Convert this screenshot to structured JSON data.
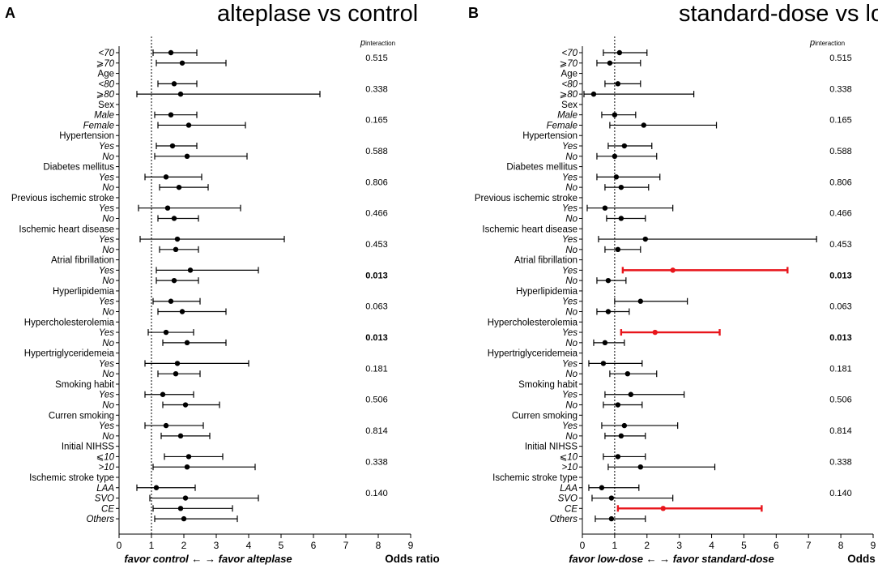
{
  "chart_data": [
    {
      "type": "forest",
      "panel": "A",
      "title": "alteplase vs control",
      "xlabel": "Odds ratio",
      "favor_text": "favor control ← → favor alteplase",
      "pinteraction_label": "p",
      "pinteraction_sub": "interaction",
      "xlim": [
        0,
        9
      ],
      "xticks": [
        0,
        1,
        2,
        3,
        4,
        5,
        6,
        7,
        8,
        9
      ],
      "reference_line": 1,
      "rows": [
        {
          "label": "<70",
          "sub": true,
          "or": 1.6,
          "lo": 1.05,
          "hi": 2.4,
          "p": "0.515",
          "highlight": false
        },
        {
          "label": "⩾70",
          "sub": true,
          "or": 1.95,
          "lo": 1.15,
          "hi": 3.3,
          "highlight": false
        },
        {
          "label": "Age",
          "sub": false
        },
        {
          "label": "<80",
          "sub": true,
          "or": 1.7,
          "lo": 1.2,
          "hi": 2.4,
          "p": "0.338",
          "highlight": false
        },
        {
          "label": "⩾80",
          "sub": true,
          "or": 1.9,
          "lo": 0.55,
          "hi": 6.2,
          "highlight": false
        },
        {
          "label": "Sex",
          "sub": false
        },
        {
          "label": "Male",
          "sub": true,
          "or": 1.6,
          "lo": 1.1,
          "hi": 2.4,
          "p": "0.165",
          "highlight": false
        },
        {
          "label": "Female",
          "sub": true,
          "or": 2.15,
          "lo": 1.2,
          "hi": 3.9,
          "highlight": false
        },
        {
          "label": "Hypertension",
          "sub": false
        },
        {
          "label": "Yes",
          "sub": true,
          "or": 1.65,
          "lo": 1.15,
          "hi": 2.4,
          "p": "0.588",
          "highlight": false
        },
        {
          "label": "No",
          "sub": true,
          "or": 2.1,
          "lo": 1.1,
          "hi": 3.95,
          "highlight": false
        },
        {
          "label": "Diabetes mellitus",
          "sub": false
        },
        {
          "label": "Yes",
          "sub": true,
          "or": 1.45,
          "lo": 0.8,
          "hi": 2.55,
          "p": "0.806",
          "highlight": false
        },
        {
          "label": "No",
          "sub": true,
          "or": 1.85,
          "lo": 1.25,
          "hi": 2.75,
          "highlight": false
        },
        {
          "label": "Previous ischemic stroke",
          "sub": false
        },
        {
          "label": "Yes",
          "sub": true,
          "or": 1.5,
          "lo": 0.6,
          "hi": 3.75,
          "p": "0.466",
          "highlight": false
        },
        {
          "label": "No",
          "sub": true,
          "or": 1.7,
          "lo": 1.2,
          "hi": 2.45,
          "highlight": false
        },
        {
          "label": "Ischemic heart disease",
          "sub": false
        },
        {
          "label": "Yes",
          "sub": true,
          "or": 1.8,
          "lo": 0.65,
          "hi": 5.1,
          "p": "0.453",
          "highlight": false
        },
        {
          "label": "No",
          "sub": true,
          "or": 1.75,
          "lo": 1.25,
          "hi": 2.45,
          "highlight": false
        },
        {
          "label": "Atrial fibrillation",
          "sub": false
        },
        {
          "label": "Yes",
          "sub": true,
          "or": 2.2,
          "lo": 1.15,
          "hi": 4.3,
          "p": "0.013",
          "pbold": true,
          "highlight": false
        },
        {
          "label": "No",
          "sub": true,
          "or": 1.7,
          "lo": 1.15,
          "hi": 2.45,
          "highlight": false
        },
        {
          "label": "Hyperlipidemia",
          "sub": false
        },
        {
          "label": "Yes",
          "sub": true,
          "or": 1.6,
          "lo": 1.05,
          "hi": 2.5,
          "p": "0.063",
          "highlight": false
        },
        {
          "label": "No",
          "sub": true,
          "or": 1.95,
          "lo": 1.2,
          "hi": 3.3,
          "highlight": false
        },
        {
          "label": "Hypercholesterolemia",
          "sub": false
        },
        {
          "label": "Yes",
          "sub": true,
          "or": 1.45,
          "lo": 0.9,
          "hi": 2.3,
          "p": "0.013",
          "pbold": true,
          "highlight": false
        },
        {
          "label": "No",
          "sub": true,
          "or": 2.1,
          "lo": 1.35,
          "hi": 3.3,
          "highlight": false
        },
        {
          "label": "Hypertriglyceridemeia",
          "sub": false
        },
        {
          "label": "Yes",
          "sub": true,
          "or": 1.8,
          "lo": 0.8,
          "hi": 4.0,
          "p": "0.181",
          "highlight": false
        },
        {
          "label": "No",
          "sub": true,
          "or": 1.75,
          "lo": 1.2,
          "hi": 2.5,
          "highlight": false
        },
        {
          "label": "Smoking habit",
          "sub": false
        },
        {
          "label": "Yes",
          "sub": true,
          "or": 1.35,
          "lo": 0.8,
          "hi": 2.3,
          "p": "0.506",
          "highlight": false
        },
        {
          "label": "No",
          "sub": true,
          "or": 2.05,
          "lo": 1.35,
          "hi": 3.1,
          "highlight": false
        },
        {
          "label": "Curren smoking",
          "sub": false
        },
        {
          "label": "Yes",
          "sub": true,
          "or": 1.45,
          "lo": 0.8,
          "hi": 2.6,
          "p": "0.814",
          "highlight": false
        },
        {
          "label": "No",
          "sub": true,
          "or": 1.9,
          "lo": 1.3,
          "hi": 2.8,
          "highlight": false
        },
        {
          "label": "Initial NIHSS",
          "sub": false
        },
        {
          "label": "⩽10",
          "sub": true,
          "or": 2.15,
          "lo": 1.4,
          "hi": 3.2,
          "p": "0.338",
          "highlight": false
        },
        {
          "label": ">10",
          "sub": true,
          "or": 2.1,
          "lo": 1.05,
          "hi": 4.2,
          "highlight": false
        },
        {
          "label": "Ischemic stroke type",
          "sub": false
        },
        {
          "label": "LAA",
          "sub": true,
          "or": 1.15,
          "lo": 0.55,
          "hi": 2.35,
          "p": "0.140",
          "highlight": false
        },
        {
          "label": "SVO",
          "sub": true,
          "or": 2.05,
          "lo": 0.95,
          "hi": 4.3,
          "highlight": false
        },
        {
          "label": "CE",
          "sub": true,
          "or": 1.9,
          "lo": 1.05,
          "hi": 3.5,
          "highlight": false
        },
        {
          "label": "Others",
          "sub": true,
          "or": 2.0,
          "lo": 1.1,
          "hi": 3.65,
          "highlight": false
        }
      ]
    },
    {
      "type": "forest",
      "panel": "B",
      "title": "standard-dose vs low-dose",
      "xlabel": "Odds ratio",
      "favor_text": "favor low-dose ← → favor standard-dose",
      "pinteraction_label": "p",
      "pinteraction_sub": "interaction",
      "xlim": [
        0,
        9
      ],
      "xticks": [
        0,
        1,
        2,
        3,
        4,
        5,
        6,
        7,
        8,
        9
      ],
      "reference_line": 1,
      "rows": [
        {
          "label": "<70",
          "sub": true,
          "or": 1.15,
          "lo": 0.65,
          "hi": 2.0,
          "p": "0.515",
          "highlight": false
        },
        {
          "label": "⩾70",
          "sub": true,
          "or": 0.85,
          "lo": 0.45,
          "hi": 1.8,
          "highlight": false
        },
        {
          "label": "Age",
          "sub": false
        },
        {
          "label": "<80",
          "sub": true,
          "or": 1.1,
          "lo": 0.7,
          "hi": 1.8,
          "p": "0.338",
          "highlight": false
        },
        {
          "label": "⩾80",
          "sub": true,
          "or": 0.35,
          "lo": 0.05,
          "hi": 3.45,
          "highlight": false
        },
        {
          "label": "Sex",
          "sub": false
        },
        {
          "label": "Male",
          "sub": true,
          "or": 1.0,
          "lo": 0.6,
          "hi": 1.65,
          "p": "0.165",
          "highlight": false
        },
        {
          "label": "Female",
          "sub": true,
          "or": 1.9,
          "lo": 0.85,
          "hi": 4.15,
          "highlight": false
        },
        {
          "label": "Hypertension",
          "sub": false
        },
        {
          "label": "Yes",
          "sub": true,
          "or": 1.3,
          "lo": 0.8,
          "hi": 2.15,
          "p": "0.588",
          "highlight": false
        },
        {
          "label": "No",
          "sub": true,
          "or": 1.0,
          "lo": 0.45,
          "hi": 2.3,
          "highlight": false
        },
        {
          "label": "Diabetes mellitus",
          "sub": false
        },
        {
          "label": "Yes",
          "sub": true,
          "or": 1.05,
          "lo": 0.45,
          "hi": 2.4,
          "p": "0.806",
          "highlight": false
        },
        {
          "label": "No",
          "sub": true,
          "or": 1.2,
          "lo": 0.7,
          "hi": 2.05,
          "highlight": false
        },
        {
          "label": "Previous ischemic stroke",
          "sub": false
        },
        {
          "label": "Yes",
          "sub": true,
          "or": 0.7,
          "lo": 0.15,
          "hi": 2.8,
          "p": "0.466",
          "highlight": false
        },
        {
          "label": "No",
          "sub": true,
          "or": 1.2,
          "lo": 0.75,
          "hi": 1.95,
          "highlight": false
        },
        {
          "label": "Ischemic heart disease",
          "sub": false
        },
        {
          "label": "Yes",
          "sub": true,
          "or": 1.95,
          "lo": 0.5,
          "hi": 7.25,
          "p": "0.453",
          "highlight": false
        },
        {
          "label": "No",
          "sub": true,
          "or": 1.1,
          "lo": 0.7,
          "hi": 1.8,
          "highlight": false
        },
        {
          "label": "Atrial fibrillation",
          "sub": false
        },
        {
          "label": "Yes",
          "sub": true,
          "or": 2.8,
          "lo": 1.25,
          "hi": 6.35,
          "p": "0.013",
          "pbold": true,
          "highlight": true
        },
        {
          "label": "No",
          "sub": true,
          "or": 0.8,
          "lo": 0.45,
          "hi": 1.35,
          "highlight": false
        },
        {
          "label": "Hyperlipidemia",
          "sub": false
        },
        {
          "label": "Yes",
          "sub": true,
          "or": 1.8,
          "lo": 1.0,
          "hi": 3.25,
          "p": "0.063",
          "highlight": false
        },
        {
          "label": "No",
          "sub": true,
          "or": 0.8,
          "lo": 0.45,
          "hi": 1.45,
          "highlight": false
        },
        {
          "label": "Hypercholesterolemia",
          "sub": false
        },
        {
          "label": "Yes",
          "sub": true,
          "or": 2.25,
          "lo": 1.2,
          "hi": 4.25,
          "p": "0.013",
          "pbold": true,
          "highlight": true
        },
        {
          "label": "No",
          "sub": true,
          "or": 0.7,
          "lo": 0.35,
          "hi": 1.3,
          "highlight": false
        },
        {
          "label": "Hypertriglyceridemeia",
          "sub": false
        },
        {
          "label": "Yes",
          "sub": true,
          "or": 0.65,
          "lo": 0.2,
          "hi": 1.85,
          "p": "0.181",
          "highlight": false
        },
        {
          "label": "No",
          "sub": true,
          "or": 1.4,
          "lo": 0.85,
          "hi": 2.3,
          "highlight": false
        },
        {
          "label": "Smoking habit",
          "sub": false
        },
        {
          "label": "Yes",
          "sub": true,
          "or": 1.5,
          "lo": 0.7,
          "hi": 3.15,
          "p": "0.506",
          "highlight": false
        },
        {
          "label": "No",
          "sub": true,
          "or": 1.1,
          "lo": 0.65,
          "hi": 1.85,
          "highlight": false
        },
        {
          "label": "Curren smoking",
          "sub": false
        },
        {
          "label": "Yes",
          "sub": true,
          "or": 1.3,
          "lo": 0.6,
          "hi": 2.95,
          "p": "0.814",
          "highlight": false
        },
        {
          "label": "No",
          "sub": true,
          "or": 1.2,
          "lo": 0.7,
          "hi": 1.95,
          "highlight": false
        },
        {
          "label": "Initial NIHSS",
          "sub": false
        },
        {
          "label": "⩽10",
          "sub": true,
          "or": 1.1,
          "lo": 0.65,
          "hi": 1.95,
          "p": "0.338",
          "highlight": false
        },
        {
          "label": ">10",
          "sub": true,
          "or": 1.8,
          "lo": 0.8,
          "hi": 4.1,
          "highlight": false
        },
        {
          "label": "Ischemic stroke type",
          "sub": false
        },
        {
          "label": "LAA",
          "sub": true,
          "or": 0.6,
          "lo": 0.2,
          "hi": 1.75,
          "p": "0.140",
          "highlight": false
        },
        {
          "label": "SVO",
          "sub": true,
          "or": 0.9,
          "lo": 0.3,
          "hi": 2.8,
          "highlight": false
        },
        {
          "label": "CE",
          "sub": true,
          "or": 2.5,
          "lo": 1.1,
          "hi": 5.55,
          "highlight": true
        },
        {
          "label": "Others",
          "sub": true,
          "or": 0.9,
          "lo": 0.4,
          "hi": 1.95,
          "highlight": false
        }
      ]
    }
  ],
  "colors": {
    "ink": "#000000",
    "highlight": "#e8151b",
    "reference": "#000000"
  }
}
